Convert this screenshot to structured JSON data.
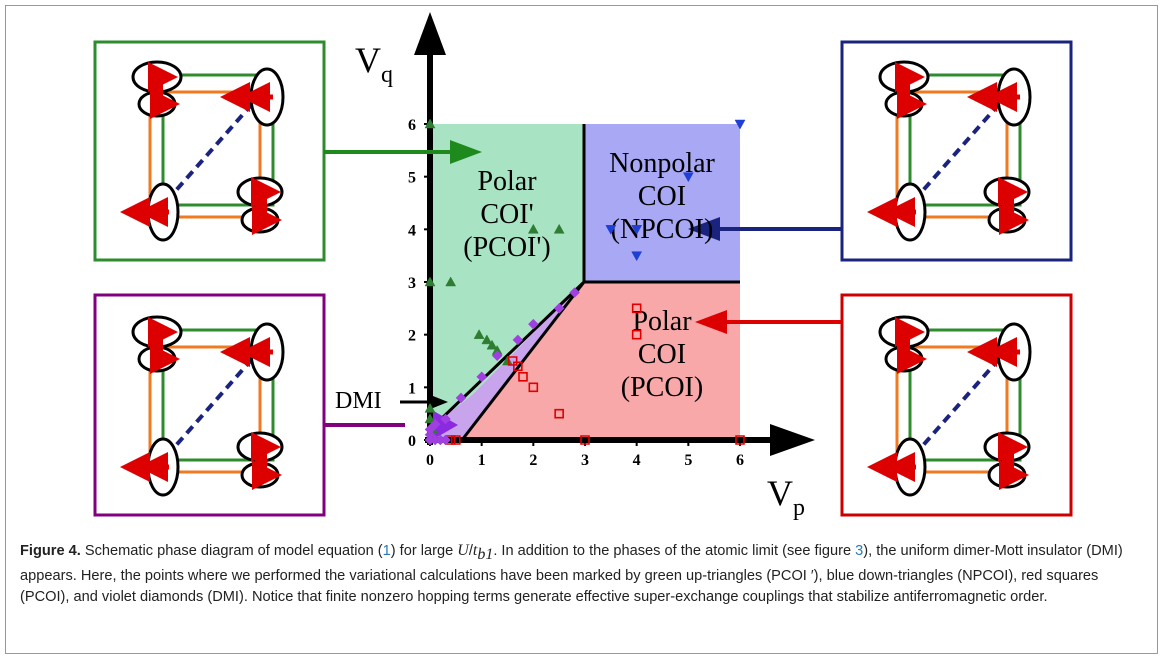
{
  "chart_data": {
    "type": "scatter",
    "x_label": "V",
    "x_label_sub": "p",
    "y_label": "V",
    "y_label_sub": "q",
    "xlim": [
      0,
      6
    ],
    "ylim": [
      0,
      6
    ],
    "xticks": [
      0,
      1,
      2,
      3,
      4,
      5,
      6
    ],
    "yticks": [
      0,
      1,
      2,
      3,
      4,
      5,
      6
    ],
    "region_labels": [
      [
        "Polar",
        "COI'",
        "(PCOI')"
      ],
      [
        "Nonpolar",
        "COI",
        "(NPCOI)"
      ],
      [
        "Polar",
        "COI",
        "(PCOI)"
      ]
    ],
    "annotation": "DMI",
    "series": [
      {
        "color": "#2e7d32",
        "marker": "triangle-up",
        "x": [
          0,
          0,
          0,
          0,
          0.05,
          0.4,
          0.95,
          1.1,
          1.2,
          1.3,
          1.5,
          2,
          2.5
        ],
        "values": [
          6,
          3,
          0.6,
          0.4,
          0.2,
          3,
          2,
          1.9,
          1.8,
          1.7,
          1.5,
          4,
          4
        ]
      },
      {
        "color": "#1f3fd6",
        "marker": "triangle-down",
        "x": [
          6,
          5,
          3.5,
          4,
          4
        ],
        "values": [
          6,
          5,
          4,
          4,
          3.5
        ]
      },
      {
        "color": "#e00000",
        "marker": "square",
        "x": [
          0.4,
          0.5,
          3,
          6,
          4,
          4,
          2.5,
          2,
          1.8,
          1.7,
          1.6
        ],
        "values": [
          0,
          0,
          0,
          0,
          2.5,
          2,
          0.5,
          1,
          1.2,
          1.4,
          1.5
        ]
      },
      {
        "color": "#a040e0",
        "marker": "diamond",
        "x": [
          0,
          0.1,
          0.2,
          0.3,
          0,
          0,
          0.1,
          0.3,
          0.6,
          1,
          1.3,
          1.7,
          2,
          2.5,
          2.8
        ],
        "values": [
          0,
          0,
          0,
          0,
          0.1,
          0.2,
          0.3,
          0.4,
          0.8,
          1.2,
          1.6,
          1.9,
          2.2,
          2.5,
          2.8
        ]
      }
    ]
  },
  "caption": {
    "label": "Figure 4.",
    "parts": [
      "Schematic phase diagram of model equation (",
      "1",
      ") for large ",
      "U",
      "/",
      "t",
      "b1",
      ". In addition to the phases of the atomic limit (see figure ",
      "3",
      "), the uniform dimer-Mott insulator (DMI) appears. Here, the points where we performed the variational calculations have been marked by green up-triangles (PCOI ′), blue down-triangles (NPCOI), red squares (PCOI), and violet diamonds (DMI). Notice that finite nonzero hopping terms generate effective super-exchange couplings that stabilize antiferromagnetic order."
    ]
  }
}
